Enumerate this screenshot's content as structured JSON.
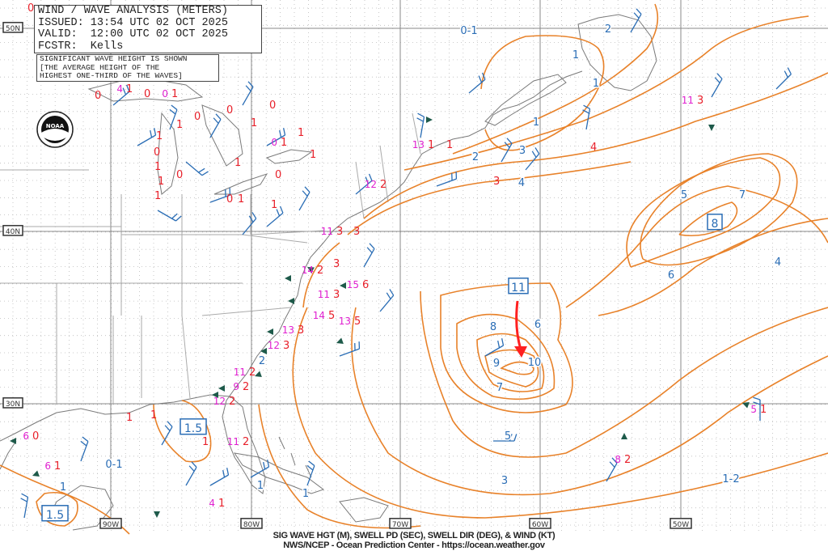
{
  "header": {
    "title": "WIND / WAVE ANALYSIS (METERS)",
    "issued": "ISSUED: 13:54 UTC 02 OCT 2025",
    "valid": "VALID:  12:00 UTC 02 OCT 2025",
    "forecaster": "FCSTR:  Kells"
  },
  "note": {
    "line1": "SIGNIFICANT WAVE HEIGHT IS SHOWN",
    "line2": "[THE AVERAGE HEIGHT OF THE",
    "line3": "HIGHEST ONE-THIRD OF THE WAVES]"
  },
  "footer": {
    "line1": "SIG WAVE HGT (M), SWELL PD (SEC), SWELL DIR (DEG), & WIND (KT)",
    "line2": "NWS/NCEP - Ocean Prediction Center - https://ocean.weather.gov"
  },
  "latitude_labels": [
    "50N",
    "40N",
    "30N"
  ],
  "longitude_labels": [
    "90W",
    "80W",
    "70W",
    "60W",
    "50W"
  ],
  "logo": "NOAA",
  "colors": {
    "contour": "#e8822a",
    "wave_height_label": "#2a6db5",
    "swell_period": "#e8202a",
    "swell_height_obs": "#e020d0",
    "wind_barb": "#2a6db5",
    "arrow": "#1e5a4a",
    "storm_track": "#ff2020",
    "grid": "#999999",
    "coast": "#777777"
  },
  "contour_labels": [
    "0-1",
    "2",
    "1",
    "1",
    "3",
    "4",
    "5",
    "7",
    "6",
    "4",
    "6",
    "8",
    "9",
    "10",
    "7",
    "5",
    "3",
    "1-2",
    "2",
    "1",
    "1",
    "1",
    "0-1",
    "1",
    "2"
  ],
  "boxed_maxima": [
    "8",
    "11",
    "1.5",
    "1.5"
  ],
  "observations": [
    {
      "period": "0"
    },
    {
      "period": "1",
      "height": "4"
    },
    {
      "period": "0"
    },
    {
      "period": "1",
      "height": "0"
    },
    {
      "period": "0"
    },
    {
      "period": "1"
    },
    {
      "period": "0"
    },
    {
      "period": "1"
    },
    {
      "period": "0"
    },
    {
      "period": "1"
    },
    {
      "period": "0"
    },
    {
      "period": "1"
    },
    {
      "period": "1"
    },
    {
      "period": "0"
    },
    {
      "period": "1"
    },
    {
      "period": "0"
    },
    {
      "period": "1"
    },
    {
      "period": "1"
    },
    {
      "period": "0"
    },
    {
      "period": "1",
      "height": "0"
    },
    {
      "period": "1"
    },
    {
      "period": "0"
    },
    {
      "period": "1"
    },
    {
      "period": "1"
    },
    {
      "period": "3",
      "height": "11"
    },
    {
      "period": "3"
    },
    {
      "period": "3"
    },
    {
      "period": "4"
    },
    {
      "period": "1",
      "height": "13"
    },
    {
      "period": "2",
      "height": "12"
    },
    {
      "period": "3",
      "height": "11"
    },
    {
      "period": "2",
      "height": "14"
    },
    {
      "period": "6",
      "height": "15"
    },
    {
      "period": "5",
      "height": "14"
    },
    {
      "period": "5",
      "height": "13"
    },
    {
      "period": "3",
      "height": "13"
    },
    {
      "period": "3",
      "height": "12"
    },
    {
      "period": "2",
      "height": "11"
    },
    {
      "period": "2",
      "height": "9"
    },
    {
      "period": "2",
      "height": "12"
    },
    {
      "period": "1"
    },
    {
      "period": "1"
    },
    {
      "period": "0",
      "height": "6"
    },
    {
      "period": "1",
      "height": "6"
    },
    {
      "period": "1"
    },
    {
      "period": "2",
      "height": "11"
    },
    {
      "period": "1",
      "height": "4"
    },
    {
      "period": "2",
      "height": "8"
    },
    {
      "period": "1",
      "height": "5"
    },
    {
      "period": "3",
      "height": "11"
    },
    {
      "period": "3"
    },
    {
      "period": "1"
    }
  ]
}
